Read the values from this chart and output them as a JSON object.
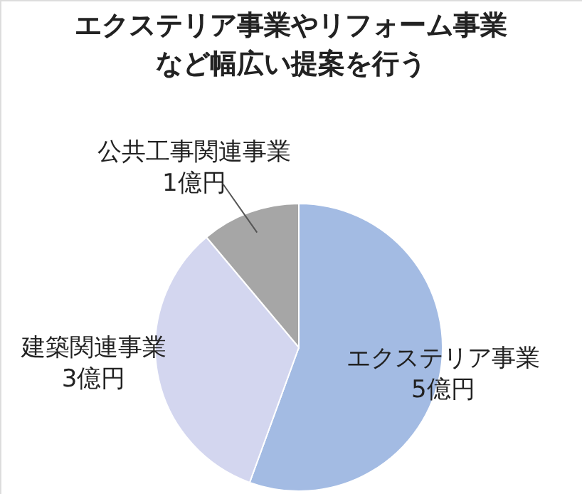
{
  "chart_data": {
    "type": "pie",
    "title": "エクステリア事業やリフォーム事業など幅広い提案を行う",
    "categories": [
      "エクステリア事業",
      "建築関連事業",
      "公共工事関連事業"
    ],
    "values": [
      5,
      3,
      1
    ],
    "value_labels": [
      "5億円",
      "3億円",
      "1億円"
    ],
    "colors": [
      "#a3bbe3",
      "#d3d6ef",
      "#a6a6a6"
    ]
  }
}
